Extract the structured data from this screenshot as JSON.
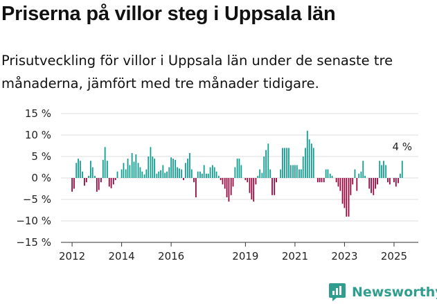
{
  "header": {
    "title": "Priserna på villor steg i Uppsala län",
    "subtitle": "Prisutveckling för villor i Uppsala län under de senaste tre månaderna, jämfört med tre månader tidigare."
  },
  "brand": {
    "name": "Newsworthy",
    "icon": "newsworthy-logo-icon",
    "color": "#2f9e8e"
  },
  "colors": {
    "positive": "#0f9e90",
    "negative": "#96063f",
    "grid": "#dddddd",
    "axis": "#333333"
  },
  "chart_data": {
    "type": "bar",
    "title": "Priserna på villor steg i Uppsala län",
    "xlabel": "",
    "ylabel": "",
    "unit": "%",
    "ylim": [
      -15,
      15
    ],
    "xlim": [
      2011.55,
      2025.98
    ],
    "grid": true,
    "legend": "none",
    "y_ticks": [
      {
        "value": 15,
        "label": "15 %"
      },
      {
        "value": 10,
        "label": "10 %"
      },
      {
        "value": 5,
        "label": "5 %"
      },
      {
        "value": 0,
        "label": "0 %"
      },
      {
        "value": -5,
        "label": "−5 %"
      },
      {
        "value": -10,
        "label": "−10 %"
      },
      {
        "value": -15,
        "label": "−15 %"
      }
    ],
    "x_ticks": [
      {
        "value": 2012,
        "label": "2012"
      },
      {
        "value": 2014,
        "label": "2014"
      },
      {
        "value": 2016,
        "label": "2016"
      },
      {
        "value": 2019,
        "label": "2019"
      },
      {
        "value": 2021,
        "label": "2021"
      },
      {
        "value": 2023,
        "label": "2023"
      },
      {
        "value": 2025,
        "label": "2025"
      }
    ],
    "annotation": {
      "x": 2025.33,
      "y": 4,
      "label": "4 %"
    },
    "series": [
      {
        "x": [
          2012.0,
          2012.08,
          2012.17,
          2012.25,
          2012.33,
          2012.42,
          2012.5,
          2012.58,
          2012.67,
          2012.75,
          2012.83,
          2012.92,
          2013.0,
          2013.08,
          2013.17,
          2013.25,
          2013.33,
          2013.42,
          2013.5,
          2013.58,
          2013.67,
          2013.75,
          2013.83,
          2013.92,
          2014.0,
          2014.08,
          2014.17,
          2014.25,
          2014.33,
          2014.42,
          2014.5,
          2014.58,
          2014.67,
          2014.75,
          2014.83,
          2014.92,
          2015.0,
          2015.08,
          2015.17,
          2015.25,
          2015.33,
          2015.42,
          2015.5,
          2015.58,
          2015.67,
          2015.75,
          2015.83,
          2015.92,
          2016.0,
          2016.08,
          2016.17,
          2016.25,
          2016.33,
          2016.42,
          2016.5,
          2016.58,
          2016.67,
          2016.75,
          2016.83,
          2016.92,
          2017.0,
          2017.08,
          2017.17,
          2017.25,
          2017.33,
          2017.42,
          2017.5,
          2017.58,
          2017.67,
          2017.75,
          2017.83,
          2017.92,
          2018.0,
          2018.08,
          2018.17,
          2018.25,
          2018.33,
          2018.42,
          2018.5,
          2018.58,
          2018.67,
          2018.75,
          2018.83,
          2018.92,
          2019.0,
          2019.08,
          2019.17,
          2019.25,
          2019.33,
          2019.42,
          2019.5,
          2019.58,
          2019.67,
          2019.75,
          2019.83,
          2019.92,
          2020.0,
          2020.08,
          2020.17,
          2020.25,
          2020.33,
          2020.42,
          2020.5,
          2020.58,
          2020.67,
          2020.75,
          2020.83,
          2020.92,
          2021.0,
          2021.08,
          2021.17,
          2021.25,
          2021.33,
          2021.42,
          2021.5,
          2021.58,
          2021.67,
          2021.75,
          2021.83,
          2021.92,
          2022.0,
          2022.08,
          2022.17,
          2022.25,
          2022.33,
          2022.42,
          2022.5,
          2022.58,
          2022.67,
          2022.75,
          2022.83,
          2022.92,
          2023.0,
          2023.08,
          2023.17,
          2023.25,
          2023.33,
          2023.42,
          2023.5,
          2023.58,
          2023.67,
          2023.75,
          2023.83,
          2023.92,
          2024.0,
          2024.08,
          2024.17,
          2024.25,
          2024.33,
          2024.42,
          2024.5,
          2024.58,
          2024.67,
          2024.75,
          2024.83,
          2024.92,
          2025.0,
          2025.08,
          2025.17,
          2025.25,
          2025.33
        ],
        "values": [
          -3.2,
          -2.5,
          3.5,
          4.5,
          4.0,
          1.5,
          -1.8,
          -1.0,
          0.5,
          4.0,
          2.5,
          0.5,
          -3.2,
          -2.8,
          -1.0,
          4.2,
          7.2,
          4.0,
          -2.0,
          -2.4,
          -1.5,
          -0.5,
          1.5,
          0.0,
          2.0,
          3.5,
          2.0,
          4.5,
          3.0,
          5.8,
          3.8,
          5.5,
          3.5,
          2.5,
          1.5,
          0.8,
          2.0,
          5.0,
          7.2,
          5.0,
          4.5,
          1.0,
          1.5,
          1.8,
          3.0,
          1.2,
          1.5,
          2.5,
          4.8,
          4.5,
          4.2,
          2.5,
          2.2,
          2.0,
          -0.5,
          3.5,
          4.5,
          5.8,
          2.0,
          -1.0,
          -4.5,
          1.5,
          1.5,
          1.0,
          3.0,
          1.0,
          1.0,
          2.5,
          3.0,
          2.5,
          1.5,
          0.5,
          -0.5,
          -1.5,
          -2.5,
          -4.5,
          -5.5,
          -4.0,
          -2.0,
          2.5,
          4.5,
          4.5,
          3.0,
          0.0,
          -0.5,
          -1.0,
          -3.5,
          -5.0,
          -5.5,
          -1.5,
          0.5,
          2.0,
          1.2,
          5.0,
          6.5,
          8.0,
          2.0,
          -4.0,
          -4.0,
          -1.0,
          0.0,
          2.0,
          7.0,
          7.0,
          7.0,
          7.0,
          3.0,
          3.0,
          3.0,
          3.0,
          2.0,
          2.0,
          5.0,
          7.0,
          11.0,
          9.0,
          8.0,
          7.0,
          0.0,
          -1.0,
          -1.0,
          -1.0,
          -1.0,
          2.0,
          2.0,
          1.0,
          0.5,
          0.0,
          -1.0,
          -2.0,
          -3.0,
          -6.0,
          -7.0,
          -9.0,
          -9.0,
          -4.0,
          -1.5,
          2.0,
          -3.0,
          1.0,
          1.5,
          4.0,
          0.5,
          0.0,
          -2.5,
          -3.5,
          -4.0,
          -2.5,
          -1.5,
          4.0,
          3.0,
          4.0,
          3.0,
          -1.0,
          -1.5,
          0.0,
          -1.0,
          -2.0,
          -1.2,
          1.0,
          4.0
        ]
      }
    ]
  }
}
